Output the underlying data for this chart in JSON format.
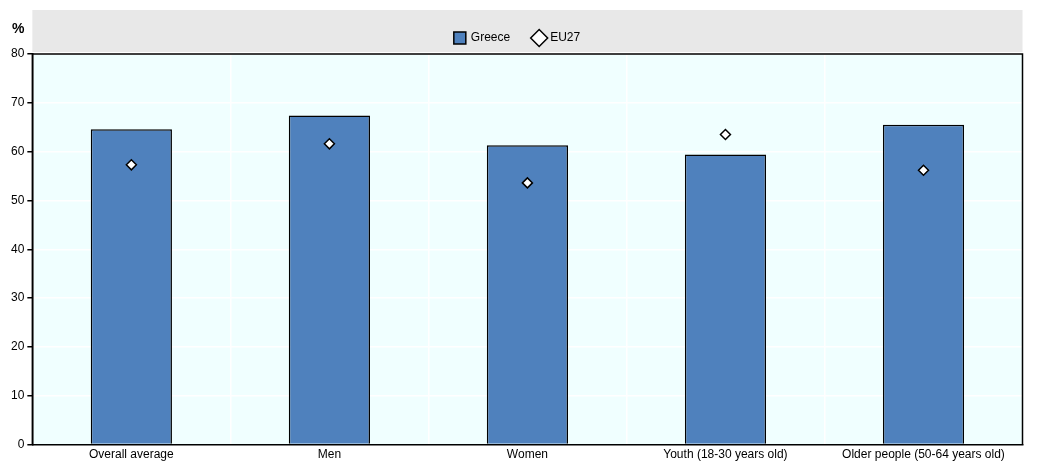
{
  "chart_data": {
    "type": "bar",
    "ylabel": "%",
    "categories": [
      "Overall average",
      "Men",
      "Women",
      "Youth (18-30 years old)",
      "Older people (50-64 years old)"
    ],
    "series": [
      {
        "name": "Greece",
        "color": "#4f81bd",
        "values": [
          64.6,
          67.4,
          61.3,
          59.4,
          65.5
        ]
      },
      {
        "name": "EU27",
        "type": "scatter",
        "color": "#ffffff",
        "marker": "diamond",
        "values": [
          57.3,
          61.6,
          53.6,
          63.5,
          56.2
        ]
      }
    ],
    "ylim": [
      0,
      80
    ],
    "yticks": [
      0,
      10,
      20,
      30,
      40,
      50,
      60,
      70,
      80
    ],
    "grid": true,
    "legend": "top"
  }
}
